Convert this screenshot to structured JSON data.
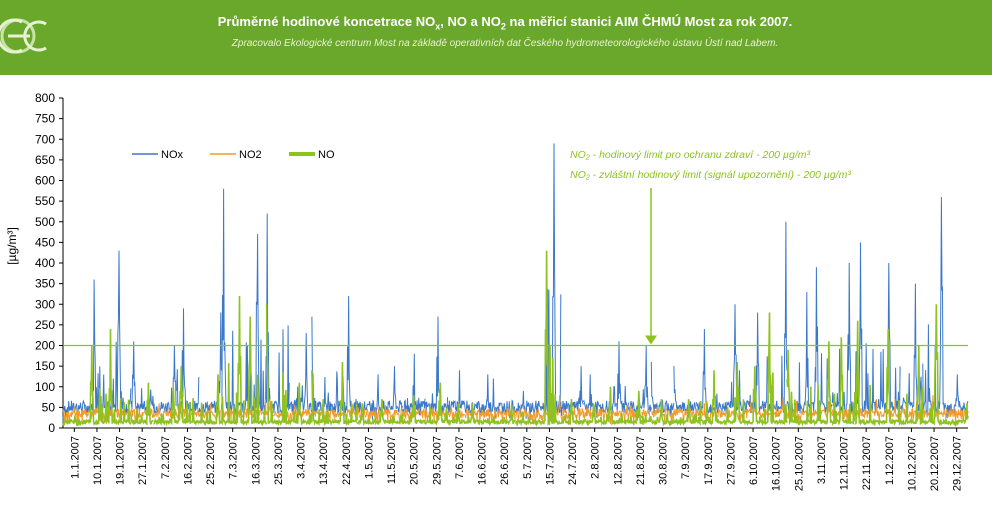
{
  "header": {
    "title_main": "Průměrné hodinové koncetrace NO",
    "title_sub_x": "x",
    "title_mid": ", NO a NO",
    "title_sub_2": "2",
    "title_end": " na měřicí stanici AIM ČHMÚ Most za rok 2007.",
    "subtitle": "Zpracovalo Ekologické centrum Most na základě operativních dat Českého hydrometeorologického ústavu Ústí nad Labem."
  },
  "colors": {
    "header_bg": "#6aa82c",
    "NOx": "#3b78c8",
    "NO2": "#f39a2a",
    "NO": "#8dc21f",
    "limit": "#8dc21f"
  },
  "chart_data": {
    "type": "line",
    "ylabel": "[µg/m³]",
    "ylim": [
      0,
      800
    ],
    "yticks": [
      0,
      50,
      100,
      150,
      200,
      250,
      300,
      350,
      400,
      450,
      500,
      550,
      600,
      650,
      700,
      750,
      800
    ],
    "x_labels": [
      "1.1.2007",
      "10.1.2007",
      "19.1.2007",
      "27.1.2007",
      "7.2.2007",
      "16.2.2007",
      "25.2.2007",
      "7.3.2007",
      "16.3.2007",
      "25.3.2007",
      "3.4.2007",
      "13.4.2007",
      "22.4.2007",
      "1.5.2007",
      "11.5.2007",
      "20.5.2007",
      "29.5.2007",
      "7.6.2007",
      "16.6.2007",
      "26.6.2007",
      "5.7.2007",
      "15.7.2007",
      "24.7.2007",
      "2.8.2007",
      "12.8.2007",
      "21.8.2007",
      "30.8.2007",
      "7.9.2007",
      "17.9.2007",
      "27.9.2007",
      "6.10.2007",
      "16.10.2007",
      "25.10.2007",
      "3.11.2007",
      "12.11.2007",
      "22.11.2007",
      "1.12.2007",
      "10.12.2007",
      "20.12.2007",
      "29.12.2007"
    ],
    "grid": false,
    "legend_position": "top-left",
    "series": [
      {
        "name": "NOx",
        "x": [
          "1.1.2007",
          "10.1.2007",
          "19.1.2007",
          "27.1.2007",
          "7.2.2007",
          "16.2.2007",
          "25.2.2007",
          "7.3.2007",
          "16.3.2007",
          "25.3.2007",
          "3.4.2007",
          "13.4.2007",
          "22.4.2007",
          "1.5.2007",
          "11.5.2007",
          "20.5.2007",
          "29.5.2007",
          "7.6.2007",
          "16.6.2007",
          "26.6.2007",
          "5.7.2007",
          "15.7.2007",
          "24.7.2007",
          "2.8.2007",
          "12.8.2007",
          "21.8.2007",
          "30.8.2007",
          "7.9.2007",
          "17.9.2007",
          "27.9.2007",
          "6.10.2007",
          "16.10.2007",
          "25.10.2007",
          "3.11.2007",
          "12.11.2007",
          "22.11.2007",
          "1.12.2007",
          "10.12.2007",
          "20.12.2007",
          "29.12.2007"
        ],
        "values": [
          60,
          360,
          430,
          210,
          200,
          290,
          280,
          580,
          470,
          520,
          230,
          270,
          320,
          130,
          150,
          180,
          270,
          140,
          130,
          120,
          90,
          690,
          150,
          130,
          210,
          200,
          160,
          150,
          240,
          300,
          280,
          500,
          330,
          390,
          400,
          450,
          400,
          350,
          560,
          130
        ]
      },
      {
        "name": "NO2",
        "x": [
          "1.1.2007",
          "10.1.2007",
          "19.1.2007",
          "27.1.2007",
          "7.2.2007",
          "16.2.2007",
          "25.2.2007",
          "7.3.2007",
          "16.3.2007",
          "25.3.2007",
          "3.4.2007",
          "13.4.2007",
          "22.4.2007",
          "1.5.2007",
          "11.5.2007",
          "20.5.2007",
          "29.5.2007",
          "7.6.2007",
          "16.6.2007",
          "26.6.2007",
          "5.7.2007",
          "15.7.2007",
          "24.7.2007",
          "2.8.2007",
          "12.8.2007",
          "21.8.2007",
          "30.8.2007",
          "7.9.2007",
          "17.9.2007",
          "27.9.2007",
          "6.10.2007",
          "16.10.2007",
          "25.10.2007",
          "3.11.2007",
          "12.11.2007",
          "22.11.2007",
          "1.12.2007",
          "10.12.2007",
          "20.12.2007",
          "29.12.2007"
        ],
        "values": [
          45,
          60,
          70,
          55,
          60,
          65,
          60,
          75,
          70,
          70,
          55,
          60,
          60,
          50,
          55,
          55,
          60,
          50,
          45,
          45,
          40,
          80,
          50,
          50,
          55,
          55,
          50,
          50,
          60,
          65,
          65,
          75,
          65,
          65,
          70,
          70,
          70,
          65,
          80,
          50
        ]
      },
      {
        "name": "NO",
        "x": [
          "1.1.2007",
          "10.1.2007",
          "19.1.2007",
          "27.1.2007",
          "7.2.2007",
          "16.2.2007",
          "25.2.2007",
          "7.3.2007",
          "16.3.2007",
          "25.3.2007",
          "3.4.2007",
          "13.4.2007",
          "22.4.2007",
          "1.5.2007",
          "11.5.2007",
          "20.5.2007",
          "29.5.2007",
          "7.6.2007",
          "16.6.2007",
          "26.6.2007",
          "5.7.2007",
          "15.7.2007",
          "24.7.2007",
          "2.8.2007",
          "12.8.2007",
          "21.8.2007",
          "30.8.2007",
          "7.9.2007",
          "17.9.2007",
          "27.9.2007",
          "6.10.2007",
          "16.10.2007",
          "25.10.2007",
          "3.11.2007",
          "12.11.2007",
          "22.11.2007",
          "1.12.2007",
          "10.12.2007",
          "20.12.2007",
          "29.12.2007"
        ],
        "values": [
          30,
          200,
          240,
          110,
          100,
          150,
          130,
          320,
          270,
          300,
          110,
          140,
          160,
          60,
          70,
          80,
          110,
          60,
          60,
          55,
          40,
          430,
          70,
          60,
          100,
          90,
          70,
          70,
          140,
          160,
          150,
          280,
          190,
          210,
          220,
          260,
          240,
          200,
          300,
          60
        ]
      }
    ],
    "limit_value": 200,
    "annotation_1": "NO₂ - hodinový limit pro ochranu zdraví - 200 µg/m³",
    "annotation_2": "NO₂ - zvláštní hodinový limit (signál upozornění) - 200 µg/m³"
  }
}
